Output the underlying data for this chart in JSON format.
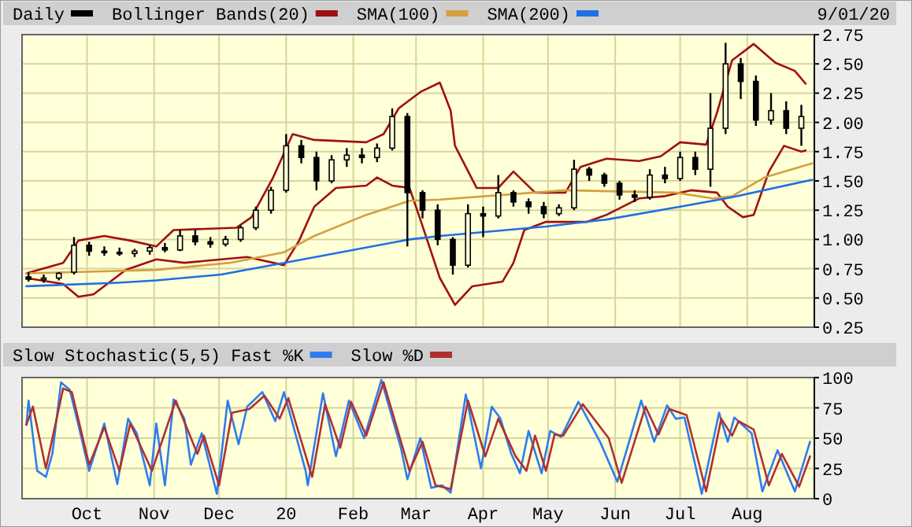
{
  "chart_data": [
    {
      "type": "candlestick",
      "legend": "top",
      "grid": true,
      "tick_labels": "y",
      "marker": "none",
      "annotations": [
        "9/01/20"
      ],
      "xlim": [
        "2019-09-01",
        "2020-09-01"
      ],
      "xticks": [
        {
          "value": "2019-10-01",
          "label": null
        },
        {
          "value": "2019-11-01",
          "label": null
        },
        {
          "value": "2019-12-01",
          "label": null
        },
        {
          "value": "2020-01-01",
          "label": null
        },
        {
          "value": "2020-02-01",
          "label": null
        },
        {
          "value": "2020-03-01",
          "label": null
        },
        {
          "value": "2020-04-01",
          "label": null
        },
        {
          "value": "2020-05-01",
          "label": null
        },
        {
          "value": "2020-06-01",
          "label": null
        },
        {
          "value": "2020-07-01",
          "label": null
        },
        {
          "value": "2020-08-01",
          "label": null
        }
      ],
      "ylim": [
        0.25,
        2.75
      ],
      "yticks": [
        0.25,
        {
          "value": 0.5,
          "label": "0.50"
        },
        0.75,
        {
          "value": 1,
          "label": "1.00"
        },
        1.25,
        {
          "value": 1.5,
          "label": "1.50"
        },
        1.75,
        {
          "value": 2,
          "label": "2.00"
        },
        2.25,
        {
          "value": 2.5,
          "label": "2.50"
        },
        2.75
      ],
      "series": [
        {
          "type": "candlestick",
          "name": "Daily",
          "color": "#000000",
          "x": [
            "2019-09-04",
            "2019-09-11",
            "2019-09-18",
            "2019-09-25",
            "2019-10-02",
            "2019-10-09",
            "2019-10-16",
            "2019-10-23",
            "2019-10-30",
            "2019-11-06",
            "2019-11-13",
            "2019-11-20",
            "2019-11-27",
            "2019-12-04",
            "2019-12-11",
            "2019-12-18",
            "2019-12-25",
            "2020-01-01",
            "2020-01-08",
            "2020-01-15",
            "2020-01-22",
            "2020-01-29",
            "2020-02-05",
            "2020-02-12",
            "2020-02-19",
            "2020-02-26",
            "2020-03-04",
            "2020-03-11",
            "2020-03-18",
            "2020-03-25",
            "2020-04-01",
            "2020-04-08",
            "2020-04-15",
            "2020-04-22",
            "2020-04-29",
            "2020-05-06",
            "2020-05-13",
            "2020-05-20",
            "2020-05-27",
            "2020-06-03",
            "2020-06-10",
            "2020-06-17",
            "2020-06-24",
            "2020-07-01",
            "2020-07-08",
            "2020-07-15",
            "2020-07-22",
            "2020-07-29",
            "2020-08-05",
            "2020-08-12",
            "2020-08-19",
            "2020-08-26"
          ],
          "ohlc": [
            [
              0.68,
              0.72,
              0.64,
              0.66
            ],
            [
              0.66,
              0.7,
              0.63,
              0.67
            ],
            [
              0.67,
              0.72,
              0.65,
              0.71
            ],
            [
              0.72,
              1.02,
              0.7,
              0.95
            ],
            [
              0.95,
              0.98,
              0.86,
              0.9
            ],
            [
              0.9,
              0.94,
              0.86,
              0.89
            ],
            [
              0.89,
              0.93,
              0.86,
              0.88
            ],
            [
              0.88,
              0.92,
              0.85,
              0.9
            ],
            [
              0.9,
              0.95,
              0.87,
              0.93
            ],
            [
              0.93,
              0.97,
              0.89,
              0.91
            ],
            [
              0.91,
              1.08,
              0.9,
              1.03
            ],
            [
              1.03,
              1.08,
              0.95,
              0.98
            ],
            [
              0.98,
              1.02,
              0.93,
              0.96
            ],
            [
              0.96,
              1.03,
              0.94,
              1.0
            ],
            [
              1.0,
              1.12,
              0.98,
              1.1
            ],
            [
              1.1,
              1.28,
              1.08,
              1.25
            ],
            [
              1.25,
              1.45,
              1.22,
              1.42
            ],
            [
              1.42,
              1.9,
              1.4,
              1.8
            ],
            [
              1.8,
              1.85,
              1.65,
              1.7
            ],
            [
              1.7,
              1.75,
              1.42,
              1.5
            ],
            [
              1.5,
              1.72,
              1.48,
              1.68
            ],
            [
              1.68,
              1.78,
              1.62,
              1.72
            ],
            [
              1.72,
              1.78,
              1.65,
              1.7
            ],
            [
              1.7,
              1.82,
              1.66,
              1.78
            ],
            [
              1.78,
              2.12,
              1.76,
              2.05
            ],
            [
              2.05,
              2.08,
              0.94,
              1.4
            ],
            [
              1.4,
              1.42,
              1.18,
              1.25
            ],
            [
              1.25,
              1.3,
              0.95,
              1.0
            ],
            [
              1.0,
              1.02,
              0.7,
              0.78
            ],
            [
              0.78,
              1.3,
              0.76,
              1.22
            ],
            [
              1.22,
              1.28,
              1.02,
              1.2
            ],
            [
              1.2,
              1.55,
              1.18,
              1.4
            ],
            [
              1.4,
              1.42,
              1.28,
              1.32
            ],
            [
              1.32,
              1.35,
              1.22,
              1.28
            ],
            [
              1.28,
              1.32,
              1.18,
              1.22
            ],
            [
              1.22,
              1.3,
              1.2,
              1.27
            ],
            [
              1.27,
              1.68,
              1.25,
              1.6
            ],
            [
              1.6,
              1.62,
              1.5,
              1.55
            ],
            [
              1.55,
              1.57,
              1.45,
              1.48
            ],
            [
              1.48,
              1.5,
              1.34,
              1.38
            ],
            [
              1.38,
              1.42,
              1.32,
              1.36
            ],
            [
              1.36,
              1.6,
              1.34,
              1.55
            ],
            [
              1.55,
              1.62,
              1.48,
              1.52
            ],
            [
              1.52,
              1.75,
              1.5,
              1.7
            ],
            [
              1.7,
              1.75,
              1.55,
              1.6
            ],
            [
              1.6,
              2.25,
              1.45,
              1.95
            ],
            [
              1.95,
              2.68,
              1.9,
              2.5
            ],
            [
              2.5,
              2.55,
              2.2,
              2.35
            ],
            [
              2.35,
              2.4,
              1.97,
              2.02
            ],
            [
              2.02,
              2.25,
              1.98,
              2.1
            ],
            [
              2.1,
              2.18,
              1.9,
              1.95
            ],
            [
              1.95,
              2.15,
              1.8,
              2.05
            ]
          ]
        },
        {
          "type": "line",
          "name": "Bollinger Bands(20)",
          "color": "#a01010",
          "x": [
            "2019-09-03",
            "2019-09-20",
            "2019-09-27",
            "2019-10-09",
            "2019-10-21",
            "2019-11-02",
            "2019-11-10",
            "2019-12-09",
            "2019-12-16",
            "2019-12-26",
            "2020-01-04",
            "2020-01-14",
            "2020-02-07",
            "2020-02-15",
            "2020-02-22",
            "2020-03-03",
            "2020-03-12",
            "2020-03-17",
            "2020-03-19",
            "2020-03-29",
            "2020-04-08",
            "2020-04-15",
            "2020-04-25",
            "2020-05-09",
            "2020-05-16",
            "2020-05-28",
            "2020-06-12",
            "2020-06-22",
            "2020-07-01",
            "2020-07-13",
            "2020-07-18",
            "2020-07-25",
            "2020-08-04",
            "2020-08-14",
            "2020-08-23",
            "2020-08-28"
          ],
          "values": [
            0.71,
            0.8,
            0.99,
            1.03,
            0.99,
            0.94,
            1.08,
            1.1,
            1.19,
            1.53,
            1.9,
            1.85,
            1.83,
            1.9,
            2.12,
            2.26,
            2.34,
            2.1,
            1.8,
            1.44,
            1.44,
            1.58,
            1.4,
            1.4,
            1.62,
            1.69,
            1.67,
            1.71,
            1.83,
            1.81,
            2.08,
            2.53,
            2.67,
            2.51,
            2.44,
            2.33
          ]
        },
        {
          "type": "line",
          "color": "#a01010",
          "x": [
            "2019-09-03",
            "2019-09-20",
            "2019-09-27",
            "2019-10-04",
            "2019-10-19",
            "2019-11-02",
            "2019-11-15",
            "2019-12-02",
            "2019-12-14",
            "2019-12-31",
            "2020-01-07",
            "2020-01-14",
            "2020-01-24",
            "2020-02-07",
            "2020-02-12",
            "2020-02-19",
            "2020-02-27",
            "2020-03-03",
            "2020-03-12",
            "2020-03-19",
            "2020-03-27",
            "2020-04-10",
            "2020-04-15",
            "2020-04-20",
            "2020-04-30",
            "2020-05-19",
            "2020-05-28",
            "2020-06-12",
            "2020-06-24",
            "2020-07-06",
            "2020-07-18",
            "2020-07-23",
            "2020-07-30",
            "2020-08-04",
            "2020-08-11",
            "2020-08-18",
            "2020-08-26",
            "2020-08-28"
          ],
          "values": [
            0.67,
            0.62,
            0.51,
            0.53,
            0.74,
            0.83,
            0.8,
            0.83,
            0.85,
            0.78,
            0.99,
            1.28,
            1.44,
            1.46,
            1.53,
            1.46,
            1.44,
            1.17,
            0.67,
            0.44,
            0.6,
            0.64,
            0.8,
            1.08,
            1.15,
            1.15,
            1.21,
            1.35,
            1.37,
            1.42,
            1.4,
            1.28,
            1.19,
            1.21,
            1.58,
            1.8,
            1.75,
            1.76
          ]
        },
        {
          "type": "line",
          "name": "SMA(100)",
          "color": "#d4a040",
          "x": [
            "2019-09-03",
            "2019-11-02",
            "2019-12-06",
            "2019-12-31",
            "2020-01-14",
            "2020-02-07",
            "2020-02-27",
            "2020-03-12",
            "2020-05-09",
            "2020-06-29",
            "2020-07-16",
            "2020-07-25",
            "2020-08-09",
            "2020-08-31"
          ],
          "values": [
            0.71,
            0.74,
            0.8,
            0.89,
            1.03,
            1.21,
            1.33,
            1.34,
            1.42,
            1.4,
            1.35,
            1.37,
            1.53,
            1.65
          ]
        },
        {
          "type": "line",
          "name": "SMA(200)",
          "color": "#1e6fe6",
          "x": [
            "2019-09-03",
            "2019-10-15",
            "2019-11-02",
            "2019-12-02",
            "2019-12-31",
            "2020-02-27",
            "2020-03-12",
            "2020-04-30",
            "2020-05-28",
            "2020-07-01",
            "2020-07-25",
            "2020-08-31"
          ],
          "values": [
            0.6,
            0.63,
            0.65,
            0.7,
            0.8,
            1.0,
            1.03,
            1.11,
            1.17,
            1.28,
            1.36,
            1.51
          ]
        }
      ]
    },
    {
      "type": "line",
      "title": "Slow Stochastic(5,5)",
      "legend": "top",
      "grid": true,
      "marker": "none",
      "xlim": [
        "2019-09-01",
        "2020-09-01"
      ],
      "xticks": [
        {
          "value": "2019-10-01",
          "label": "Oct"
        },
        {
          "value": "2019-11-01",
          "label": "Nov"
        },
        {
          "value": "2019-12-01",
          "label": "Dec"
        },
        {
          "value": "2020-01-01",
          "label": "20"
        },
        {
          "value": "2020-02-01",
          "label": "Feb"
        },
        {
          "value": "2020-03-01",
          "label": "Mar"
        },
        {
          "value": "2020-04-01",
          "label": "Apr"
        },
        {
          "value": "2020-05-01",
          "label": "May"
        },
        {
          "value": "2020-06-01",
          "label": "Jun"
        },
        {
          "value": "2020-07-01",
          "label": "Jul"
        },
        {
          "value": "2020-08-01",
          "label": "Aug"
        }
      ],
      "ylim": [
        0,
        100
      ],
      "yticks": [
        0,
        25,
        50,
        75,
        100
      ],
      "series": [
        {
          "name": "Fast %K",
          "color": "#2f7cf0",
          "x": [
            "2019-09-03",
            "2019-09-04",
            "2019-09-08",
            "2019-09-12",
            "2019-09-15",
            "2019-09-19",
            "2019-09-23",
            "2019-09-27",
            "2019-10-02",
            "2019-10-09",
            "2019-10-15",
            "2019-10-20",
            "2019-10-24",
            "2019-10-30",
            "2019-11-02",
            "2019-11-06",
            "2019-11-10",
            "2019-11-15",
            "2019-11-18",
            "2019-11-23",
            "2019-11-30",
            "2019-12-05",
            "2019-12-10",
            "2019-12-14",
            "2019-12-21",
            "2019-12-27",
            "2019-12-31",
            "2020-01-10",
            "2020-01-11",
            "2020-01-18",
            "2020-01-24",
            "2020-01-30",
            "2020-02-06",
            "2020-02-14",
            "2020-02-23",
            "2020-02-26",
            "2020-03-03",
            "2020-03-08",
            "2020-03-13",
            "2020-03-17",
            "2020-03-24",
            "2020-03-31",
            "2020-04-05",
            "2020-04-09",
            "2020-04-14",
            "2020-04-18",
            "2020-04-22",
            "2020-04-28",
            "2020-05-02",
            "2020-05-07",
            "2020-05-15",
            "2020-05-25",
            "2020-06-02",
            "2020-06-13",
            "2020-06-19",
            "2020-06-25",
            "2020-06-29",
            "2020-07-03",
            "2020-07-11",
            "2020-07-19",
            "2020-07-23",
            "2020-07-26",
            "2020-08-03",
            "2020-08-08",
            "2020-08-15",
            "2020-08-23",
            "2020-08-30"
          ],
          "values": [
            61,
            81,
            23,
            18,
            37,
            96,
            90,
            61,
            23,
            62,
            12,
            66,
            54,
            11,
            62,
            11,
            82,
            66,
            28,
            54,
            4,
            81,
            45,
            76,
            88,
            64,
            88,
            23,
            11,
            87,
            35,
            81,
            50,
            98,
            42,
            16,
            50,
            9,
            11,
            5,
            86,
            25,
            76,
            66,
            37,
            21,
            56,
            21,
            56,
            51,
            80,
            47,
            14,
            81,
            47,
            77,
            66,
            67,
            4,
            71,
            47,
            67,
            54,
            6,
            40,
            6,
            47
          ]
        },
        {
          "name": "Slow %D",
          "color": "#b03030",
          "x": [
            "2019-09-03",
            "2019-09-06",
            "2019-09-12",
            "2019-09-20",
            "2019-09-24",
            "2019-10-02",
            "2019-10-09",
            "2019-10-16",
            "2019-10-21",
            "2019-10-31",
            "2019-11-11",
            "2019-11-21",
            "2019-11-24",
            "2019-12-01",
            "2019-12-07",
            "2019-12-15",
            "2019-12-22",
            "2019-12-29",
            "2020-01-02",
            "2020-01-13",
            "2020-01-19",
            "2020-01-26",
            "2020-01-31",
            "2020-02-07",
            "2020-02-15",
            "2020-02-27",
            "2020-03-04",
            "2020-03-10",
            "2020-03-17",
            "2020-03-25",
            "2020-04-02",
            "2020-04-08",
            "2020-04-16",
            "2020-04-21",
            "2020-04-25",
            "2020-04-30",
            "2020-05-04",
            "2020-05-08",
            "2020-05-17",
            "2020-05-29",
            "2020-06-04",
            "2020-06-15",
            "2020-06-21",
            "2020-06-26",
            "2020-07-04",
            "2020-07-13",
            "2020-07-20",
            "2020-07-25",
            "2020-07-28",
            "2020-08-04",
            "2020-08-11",
            "2020-08-17",
            "2020-08-25",
            "2020-08-30"
          ],
          "values": [
            61,
            76,
            25,
            91,
            88,
            28,
            59,
            23,
            62,
            23,
            81,
            37,
            52,
            11,
            71,
            74,
            85,
            66,
            83,
            18,
            78,
            42,
            80,
            52,
            96,
            23,
            47,
            11,
            8,
            81,
            35,
            66,
            35,
            23,
            52,
            23,
            53,
            52,
            78,
            50,
            13,
            76,
            53,
            74,
            69,
            6,
            66,
            52,
            64,
            57,
            11,
            37,
            10,
            35
          ]
        }
      ]
    }
  ]
}
